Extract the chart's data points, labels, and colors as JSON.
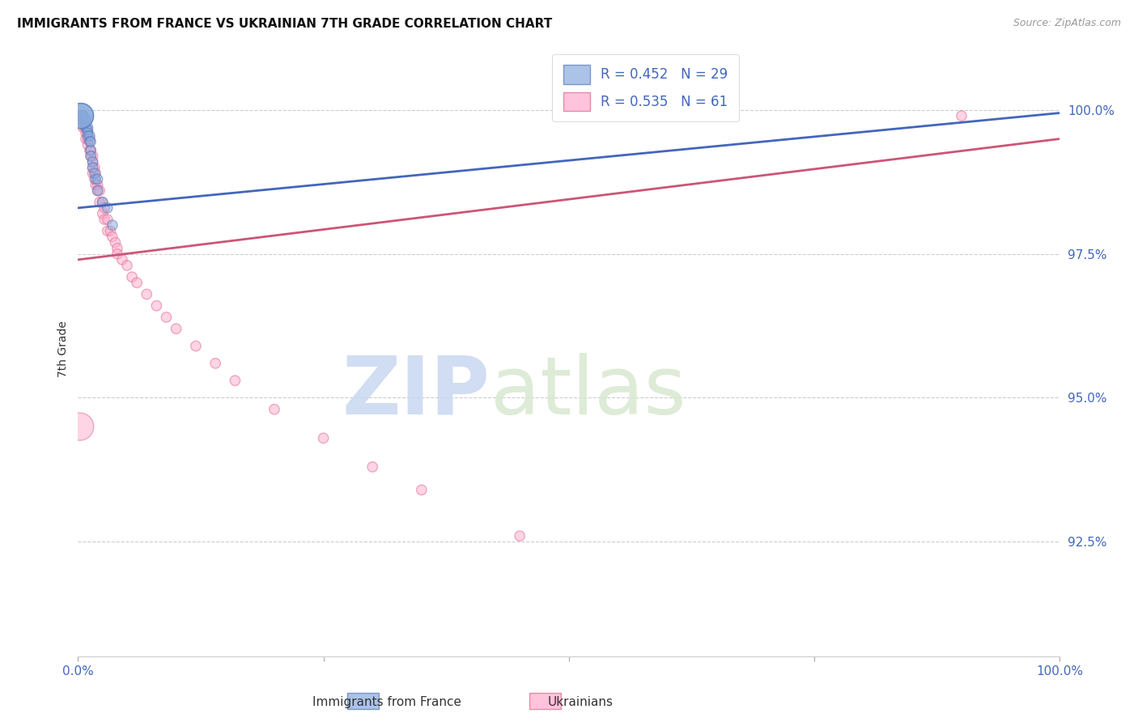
{
  "title": "IMMIGRANTS FROM FRANCE VS UKRAINIAN 7TH GRADE CORRELATION CHART",
  "source": "Source: ZipAtlas.com",
  "ylabel": "7th Grade",
  "ytick_labels": [
    "100.0%",
    "97.5%",
    "95.0%",
    "92.5%"
  ],
  "ytick_values": [
    1.0,
    0.975,
    0.95,
    0.925
  ],
  "xlim": [
    0.0,
    1.0
  ],
  "ylim": [
    0.905,
    1.012
  ],
  "legend1_label": "R = 0.452   N = 29",
  "legend2_label": "R = 0.535   N = 61",
  "legend_label1": "Immigrants from France",
  "legend_label2": "Ukrainians",
  "blue_color": "#88AADD",
  "pink_color": "#FFAACC",
  "blue_edge_color": "#5577BB",
  "pink_edge_color": "#DD6688",
  "blue_line_color": "#4466BB",
  "pink_line_color": "#CC5577",
  "watermark_zip": "ZIP",
  "watermark_atlas": "atlas",
  "blue_scatter_x": [
    0.005,
    0.005,
    0.005,
    0.005,
    0.005,
    0.008,
    0.008,
    0.008,
    0.01,
    0.01,
    0.01,
    0.01,
    0.012,
    0.012,
    0.013,
    0.013,
    0.013,
    0.015,
    0.015,
    0.017,
    0.018,
    0.02,
    0.02,
    0.025,
    0.03,
    0.035,
    0.003,
    0.003,
    0.003
  ],
  "blue_scatter_y": [
    0.999,
    0.999,
    0.999,
    0.999,
    0.9985,
    0.9985,
    0.998,
    0.997,
    0.997,
    0.9965,
    0.996,
    0.9955,
    0.9955,
    0.9945,
    0.9945,
    0.993,
    0.992,
    0.991,
    0.99,
    0.989,
    0.988,
    0.988,
    0.986,
    0.984,
    0.983,
    0.98,
    0.999,
    0.999,
    0.999
  ],
  "blue_scatter_sizes": [
    80,
    80,
    80,
    80,
    80,
    80,
    80,
    80,
    80,
    80,
    80,
    80,
    80,
    80,
    80,
    80,
    80,
    80,
    80,
    80,
    80,
    80,
    80,
    80,
    80,
    80,
    500,
    500,
    500
  ],
  "pink_scatter_x": [
    0.002,
    0.002,
    0.002,
    0.005,
    0.005,
    0.005,
    0.005,
    0.005,
    0.007,
    0.007,
    0.008,
    0.008,
    0.008,
    0.01,
    0.01,
    0.01,
    0.012,
    0.012,
    0.013,
    0.013,
    0.015,
    0.015,
    0.015,
    0.015,
    0.017,
    0.017,
    0.018,
    0.018,
    0.02,
    0.02,
    0.022,
    0.022,
    0.025,
    0.025,
    0.027,
    0.027,
    0.03,
    0.03,
    0.033,
    0.035,
    0.038,
    0.04,
    0.04,
    0.045,
    0.05,
    0.055,
    0.06,
    0.07,
    0.08,
    0.09,
    0.1,
    0.12,
    0.14,
    0.16,
    0.2,
    0.25,
    0.3,
    0.35,
    0.45,
    0.9,
    0.002
  ],
  "pink_scatter_y": [
    0.999,
    0.999,
    0.999,
    0.999,
    0.998,
    0.998,
    0.998,
    0.997,
    0.998,
    0.997,
    0.997,
    0.996,
    0.995,
    0.996,
    0.995,
    0.994,
    0.995,
    0.993,
    0.993,
    0.992,
    0.992,
    0.991,
    0.99,
    0.989,
    0.99,
    0.988,
    0.989,
    0.987,
    0.987,
    0.986,
    0.986,
    0.984,
    0.984,
    0.982,
    0.983,
    0.981,
    0.981,
    0.979,
    0.979,
    0.978,
    0.977,
    0.976,
    0.975,
    0.974,
    0.973,
    0.971,
    0.97,
    0.968,
    0.966,
    0.964,
    0.962,
    0.959,
    0.956,
    0.953,
    0.948,
    0.943,
    0.938,
    0.934,
    0.926,
    0.999,
    0.945
  ],
  "pink_scatter_sizes": [
    80,
    80,
    80,
    80,
    80,
    80,
    80,
    80,
    80,
    80,
    80,
    80,
    80,
    80,
    80,
    80,
    80,
    80,
    80,
    80,
    80,
    80,
    80,
    80,
    80,
    80,
    80,
    80,
    80,
    80,
    80,
    80,
    80,
    80,
    80,
    80,
    80,
    80,
    80,
    80,
    80,
    80,
    80,
    80,
    80,
    80,
    80,
    80,
    80,
    80,
    80,
    80,
    80,
    80,
    80,
    80,
    80,
    80,
    80,
    80,
    600
  ],
  "blue_trendline_x": [
    0.0,
    1.0
  ],
  "blue_trendline_y": [
    0.983,
    0.9995
  ],
  "pink_trendline_x": [
    0.0,
    1.0
  ],
  "pink_trendline_y": [
    0.974,
    0.995
  ]
}
